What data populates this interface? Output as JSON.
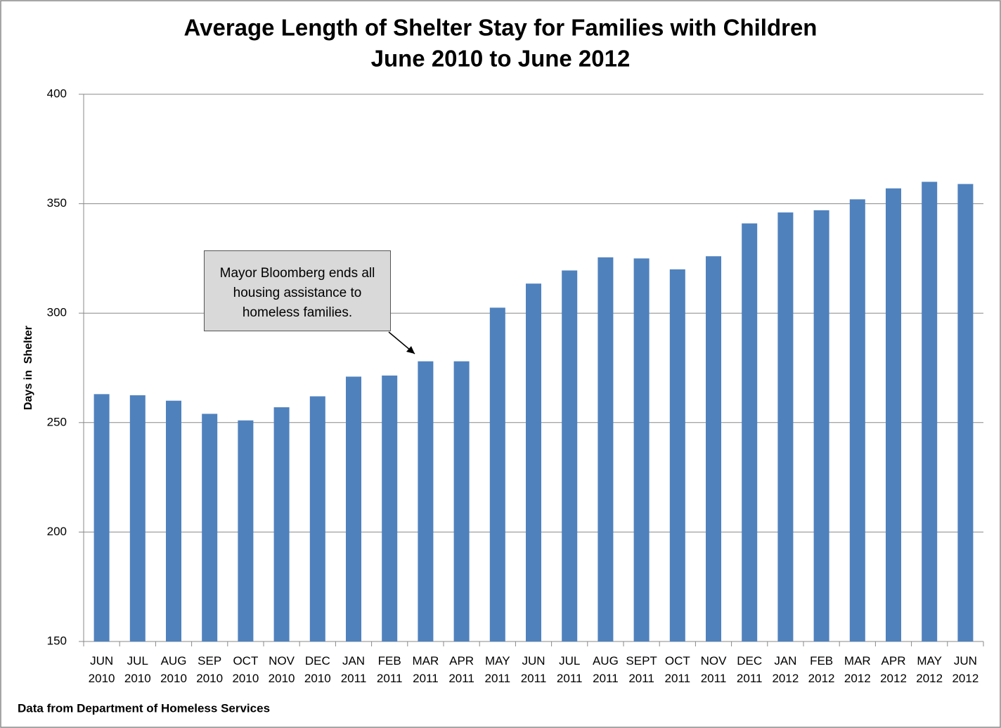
{
  "chart_data": {
    "type": "bar",
    "title": "Average Length of Shelter Stay for Families with Children",
    "subtitle": "June 2010 to June 2012",
    "y_label": "Days in  Shelter",
    "source": "Data from Department of Homeless Services",
    "annotation": "Mayor Bloomberg ends all housing assistance to homeless families.",
    "categories": [
      "JUN 2010",
      "JUL 2010",
      "AUG 2010",
      "SEP 2010",
      "OCT 2010",
      "NOV 2010",
      "DEC 2010",
      "JAN 2011",
      "FEB 2011",
      "MAR 2011",
      "APR 2011",
      "MAY 2011",
      "JUN 2011",
      "JUL 2011",
      "AUG 2011",
      "SEPT 2011",
      "OCT 2011",
      "NOV 2011",
      "DEC 2011",
      "JAN 2012",
      "FEB 2012",
      "MAR 2012",
      "APR 2012",
      "MAY 2012",
      "JUN 2012"
    ],
    "values": [
      263,
      262.5,
      260,
      254,
      251,
      257,
      262,
      271,
      271.5,
      278,
      278,
      302.5,
      313.5,
      319.5,
      325.5,
      325,
      320,
      326,
      341,
      346,
      347,
      352,
      357,
      360,
      359
    ],
    "color": "#4f81bd",
    "ylim": [
      150,
      400
    ],
    "yticks": [
      150,
      200,
      250,
      300,
      350,
      400
    ],
    "grid": true
  }
}
